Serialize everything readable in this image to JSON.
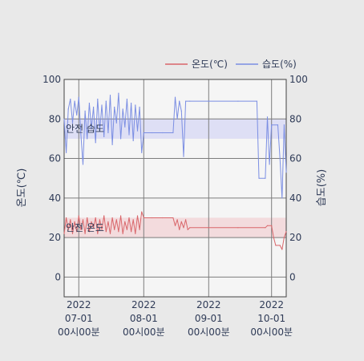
{
  "chart_data": {
    "type": "line",
    "title": "",
    "xlabel": "",
    "ylabel_left": "온도(℃)",
    "ylabel_right": "습도(%)",
    "ylim": [
      -10,
      100
    ],
    "grid": true,
    "legend_position": "top-right",
    "x_ticks": [
      {
        "date": "2022-07-01",
        "lines": [
          "2022",
          "07-01",
          "00시00분"
        ]
      },
      {
        "date": "2022-08-01",
        "lines": [
          "2022",
          "08-01",
          "00시00분"
        ]
      },
      {
        "date": "2022-09-01",
        "lines": [
          "2022",
          "09-01",
          "00시00분"
        ]
      },
      {
        "date": "2022-10-01",
        "lines": [
          "2022",
          "10-01",
          "00시00분"
        ]
      }
    ],
    "y_ticks": [
      0,
      20,
      40,
      60,
      80,
      100
    ],
    "x_range": [
      "2022-06-24",
      "2022-10-08"
    ],
    "bands": [
      {
        "label": "안전 습도",
        "from": 70,
        "to": 80,
        "color": "#d9dbf5"
      },
      {
        "label": "안전 온도",
        "from": 20,
        "to": 30,
        "color": "#f2d6d8"
      }
    ],
    "series": [
      {
        "name": "온도(℃)",
        "axis": "left",
        "color": "#d9666a",
        "points": [
          [
            "2022-06-24",
            22
          ],
          [
            "2022-06-25",
            30
          ],
          [
            "2022-06-26",
            24
          ],
          [
            "2022-06-27",
            29
          ],
          [
            "2022-06-28",
            22
          ],
          [
            "2022-06-29",
            28
          ],
          [
            "2022-06-30",
            23
          ],
          [
            "2022-07-01",
            31
          ],
          [
            "2022-07-02",
            24
          ],
          [
            "2022-07-03",
            29
          ],
          [
            "2022-07-04",
            22
          ],
          [
            "2022-07-05",
            30
          ],
          [
            "2022-07-06",
            23
          ],
          [
            "2022-07-07",
            28
          ],
          [
            "2022-07-08",
            25
          ],
          [
            "2022-07-09",
            30
          ],
          [
            "2022-07-10",
            22
          ],
          [
            "2022-07-11",
            29
          ],
          [
            "2022-07-12",
            24
          ],
          [
            "2022-07-13",
            31
          ],
          [
            "2022-07-14",
            23
          ],
          [
            "2022-07-15",
            28
          ],
          [
            "2022-07-16",
            22
          ],
          [
            "2022-07-17",
            30
          ],
          [
            "2022-07-18",
            24
          ],
          [
            "2022-07-19",
            29
          ],
          [
            "2022-07-20",
            23
          ],
          [
            "2022-07-21",
            31
          ],
          [
            "2022-07-22",
            22
          ],
          [
            "2022-07-23",
            28
          ],
          [
            "2022-07-24",
            24
          ],
          [
            "2022-07-25",
            30
          ],
          [
            "2022-07-26",
            23
          ],
          [
            "2022-07-27",
            29
          ],
          [
            "2022-07-28",
            22
          ],
          [
            "2022-07-29",
            31
          ],
          [
            "2022-07-30",
            24
          ],
          [
            "2022-07-31",
            33
          ],
          [
            "2022-08-01",
            30
          ],
          [
            "2022-08-05",
            30
          ],
          [
            "2022-08-10",
            30
          ],
          [
            "2022-08-15",
            30
          ],
          [
            "2022-08-16",
            26
          ],
          [
            "2022-08-17",
            29
          ],
          [
            "2022-08-18",
            24
          ],
          [
            "2022-08-19",
            28
          ],
          [
            "2022-08-20",
            25
          ],
          [
            "2022-08-21",
            29
          ],
          [
            "2022-08-22",
            24
          ],
          [
            "2022-08-23",
            25
          ],
          [
            "2022-09-01",
            25
          ],
          [
            "2022-09-15",
            25
          ],
          [
            "2022-09-28",
            25
          ],
          [
            "2022-09-29",
            26
          ],
          [
            "2022-10-01",
            26
          ],
          [
            "2022-10-02",
            20
          ],
          [
            "2022-10-03",
            16
          ],
          [
            "2022-10-05",
            16
          ],
          [
            "2022-10-06",
            14
          ],
          [
            "2022-10-07",
            20
          ],
          [
            "2022-10-08",
            23
          ]
        ]
      },
      {
        "name": "습도(%)",
        "axis": "right",
        "color": "#7b8ee3",
        "points": [
          [
            "2022-06-24",
            80
          ],
          [
            "2022-06-25",
            63
          ],
          [
            "2022-06-26",
            85
          ],
          [
            "2022-06-27",
            90
          ],
          [
            "2022-06-28",
            78
          ],
          [
            "2022-06-29",
            89
          ],
          [
            "2022-06-30",
            82
          ],
          [
            "2022-07-01",
            91
          ],
          [
            "2022-07-02",
            72
          ],
          [
            "2022-07-03",
            57
          ],
          [
            "2022-07-04",
            84
          ],
          [
            "2022-07-05",
            70
          ],
          [
            "2022-07-06",
            88
          ],
          [
            "2022-07-07",
            75
          ],
          [
            "2022-07-08",
            86
          ],
          [
            "2022-07-09",
            68
          ],
          [
            "2022-07-10",
            90
          ],
          [
            "2022-07-11",
            74
          ],
          [
            "2022-07-12",
            87
          ],
          [
            "2022-07-13",
            71
          ],
          [
            "2022-07-14",
            89
          ],
          [
            "2022-07-15",
            73
          ],
          [
            "2022-07-16",
            92
          ],
          [
            "2022-07-17",
            67
          ],
          [
            "2022-07-18",
            86
          ],
          [
            "2022-07-19",
            78
          ],
          [
            "2022-07-20",
            93
          ],
          [
            "2022-07-21",
            70
          ],
          [
            "2022-07-22",
            85
          ],
          [
            "2022-07-23",
            76
          ],
          [
            "2022-07-24",
            90
          ],
          [
            "2022-07-25",
            72
          ],
          [
            "2022-07-26",
            88
          ],
          [
            "2022-07-27",
            69
          ],
          [
            "2022-07-28",
            87
          ],
          [
            "2022-07-29",
            74
          ],
          [
            "2022-07-30",
            86
          ],
          [
            "2022-07-31",
            63
          ],
          [
            "2022-08-01",
            73
          ],
          [
            "2022-08-05",
            73
          ],
          [
            "2022-08-10",
            73
          ],
          [
            "2022-08-15",
            73
          ],
          [
            "2022-08-16",
            91
          ],
          [
            "2022-08-17",
            80
          ],
          [
            "2022-08-18",
            89
          ],
          [
            "2022-08-19",
            84
          ],
          [
            "2022-08-20",
            61
          ],
          [
            "2022-08-21",
            89
          ],
          [
            "2022-08-23",
            89
          ],
          [
            "2022-09-01",
            89
          ],
          [
            "2022-09-15",
            89
          ],
          [
            "2022-09-24",
            89
          ],
          [
            "2022-09-25",
            50
          ],
          [
            "2022-09-28",
            50
          ],
          [
            "2022-09-29",
            81
          ],
          [
            "2022-09-30",
            57
          ],
          [
            "2022-10-01",
            77
          ],
          [
            "2022-10-04",
            77
          ],
          [
            "2022-10-05",
            60
          ],
          [
            "2022-10-06",
            40
          ],
          [
            "2022-10-07",
            77
          ],
          [
            "2022-10-08",
            53
          ]
        ]
      }
    ]
  }
}
